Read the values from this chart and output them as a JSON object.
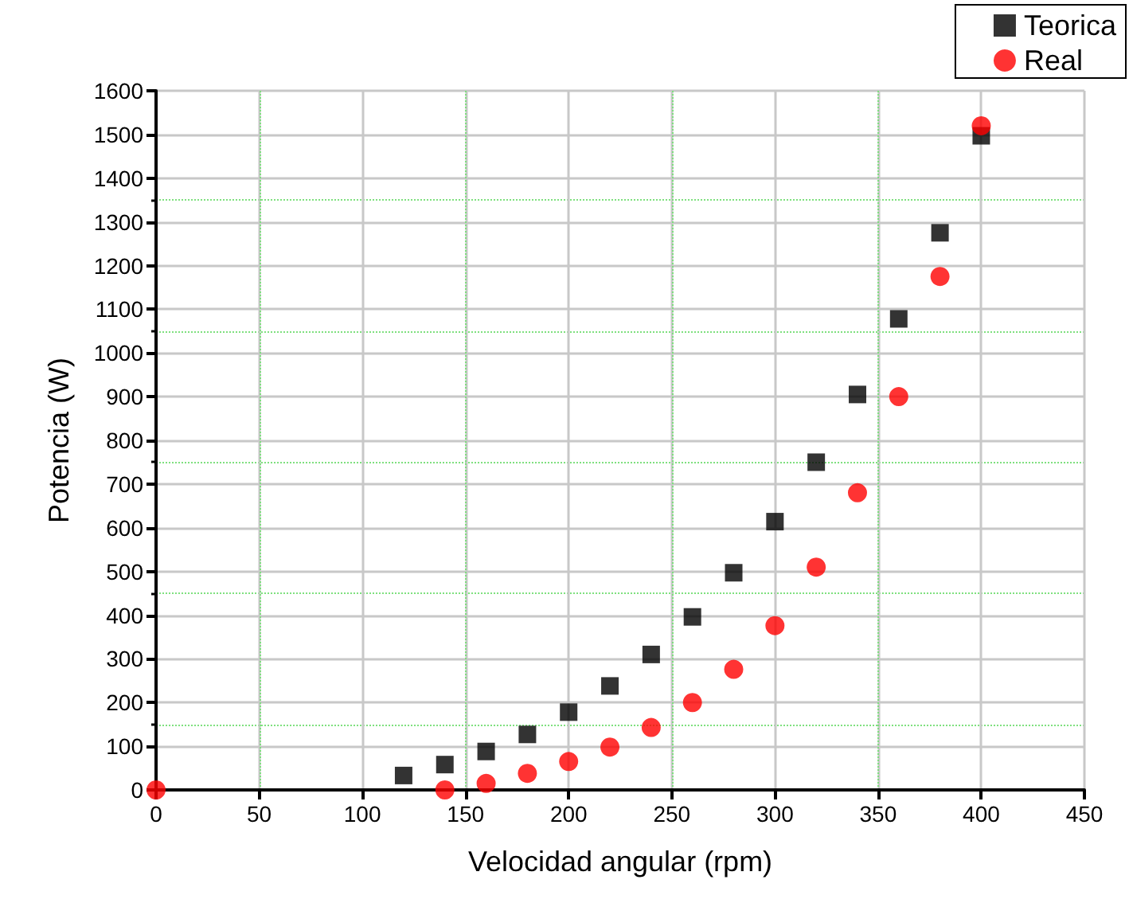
{
  "chart_data": {
    "type": "scatter",
    "xlabel": "Velocidad angular (rpm)",
    "ylabel": "Potencia (W)",
    "series": [
      {
        "name": "Teorica",
        "color": "#000000",
        "marker": "square",
        "x": [
          120,
          140,
          160,
          180,
          200,
          220,
          240,
          260,
          280,
          300,
          320,
          340,
          360,
          380,
          400
        ],
        "values": [
          33,
          58,
          88,
          127,
          178,
          238,
          310,
          396,
          497,
          614,
          750,
          905,
          1078,
          1275,
          1497
        ]
      },
      {
        "name": "Real",
        "color": "#ff0000",
        "marker": "circle",
        "x": [
          0,
          140,
          160,
          180,
          200,
          220,
          240,
          260,
          280,
          300,
          320,
          340,
          360,
          380,
          400
        ],
        "values": [
          0,
          0,
          15,
          38,
          65,
          98,
          143,
          200,
          276,
          376,
          510,
          680,
          900,
          1175,
          1520
        ]
      }
    ],
    "xlim": [
      0,
      450
    ],
    "xticks": [
      0,
      50,
      100,
      150,
      200,
      250,
      300,
      350,
      400,
      450
    ],
    "ylim": [
      0,
      1600
    ],
    "yticks": [
      0,
      100,
      200,
      300,
      400,
      500,
      600,
      700,
      800,
      900,
      1000,
      1100,
      1200,
      1300,
      1400,
      1500,
      1600
    ],
    "grid": true,
    "legend": "top right"
  }
}
